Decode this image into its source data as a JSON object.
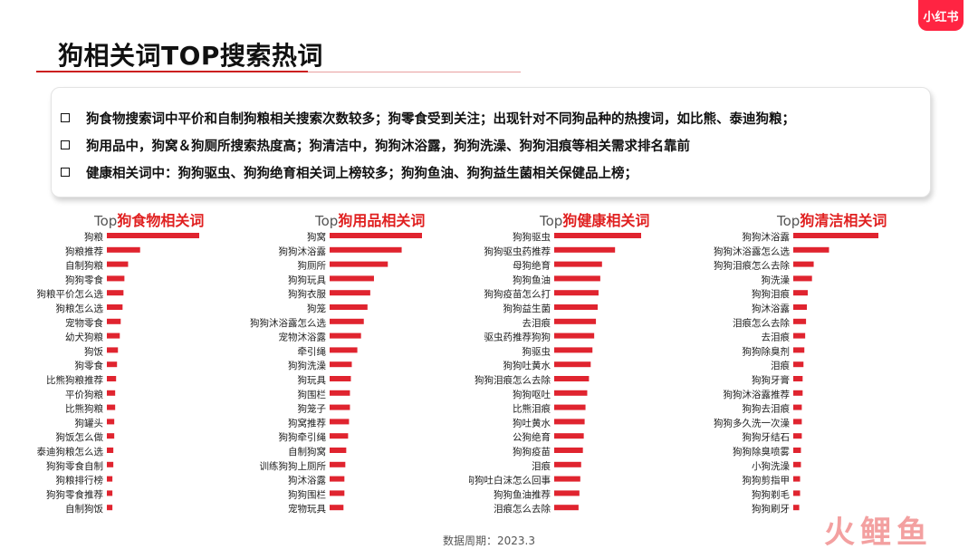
{
  "brand": {
    "badge_text": "小红书",
    "watermark_text": "火鲤鱼"
  },
  "page": {
    "title": "狗相关词TOP搜索热词"
  },
  "summary": [
    "狗食物搜索词中平价和自制狗粮相关搜索次数较多；狗零食受到关注；出现针对不同狗品种的热搜词，如比熊、泰迪狗粮；",
    "狗用品中，狗窝＆狗厕所搜索热度高；狗清洁中，狗狗沐浴露，狗狗洗澡、狗狗泪痕等相关需求排名靠前",
    "健康相关词中：狗狗驱虫、狗狗绝育相关词上榜较多；狗狗鱼油、狗狗益生菌相关保健品上榜；"
  ],
  "footer": {
    "period": "数据周期：2023.3"
  },
  "colors": {
    "bar": "#e0242f",
    "accent": "#e02020"
  },
  "chart_data": [
    {
      "type": "bar",
      "orientation": "horizontal",
      "title_prefix": "Top",
      "title": "狗食物相关词",
      "categories": [
        "狗粮",
        "狗粮推荐",
        "自制狗粮",
        "狗狗零食",
        "狗粮平价怎么选",
        "狗粮怎么选",
        "宠物零食",
        "幼犬狗粮",
        "狗饭",
        "狗零食",
        "比熊狗粮推荐",
        "平价狗粮",
        "比熊狗粮",
        "狗罐头",
        "狗饭怎么做",
        "泰迪狗粮怎么选",
        "狗狗零食自制",
        "狗粮排行榜",
        "狗狗零食推荐",
        "自制狗饭"
      ],
      "values": [
        100,
        36,
        23,
        19,
        18,
        17,
        15,
        14,
        12,
        11,
        10,
        9,
        9,
        8,
        8,
        7,
        7,
        6,
        6,
        6
      ]
    },
    {
      "type": "bar",
      "orientation": "horizontal",
      "title_prefix": "Top",
      "title": "狗用品相关词",
      "categories": [
        "狗窝",
        "狗狗沐浴露",
        "狗厕所",
        "狗狗玩具",
        "狗狗衣服",
        "狗笼",
        "狗狗沐浴露怎么选",
        "宠物沐浴露",
        "牵引绳",
        "狗狗洗澡",
        "狗玩具",
        "狗围栏",
        "狗笼子",
        "狗窝推荐",
        "狗狗牵引绳",
        "自制狗窝",
        "训练狗狗上厕所",
        "狗沐浴露",
        "狗狗围栏",
        "宠物玩具"
      ],
      "values": [
        100,
        78,
        63,
        48,
        44,
        41,
        37,
        34,
        30,
        24,
        23,
        22,
        22,
        21,
        20,
        18,
        17,
        16,
        16,
        15
      ]
    },
    {
      "type": "bar",
      "orientation": "horizontal",
      "title_prefix": "Top",
      "title": "狗健康相关词",
      "categories": [
        "狗狗驱虫",
        "狗狗驱虫药推荐",
        "母狗绝育",
        "狗狗鱼油",
        "狗狗疫苗怎么打",
        "狗狗益生菌",
        "去泪痕",
        "驱虫药推荐狗狗",
        "狗驱虫",
        "狗狗吐黄水",
        "狗狗泪痕怎么去除",
        "狗狗呕吐",
        "比熊泪痕",
        "狗吐黄水",
        "公狗绝育",
        "狗狗疫苗",
        "泪痕",
        "狗狗吐白沫怎么回事",
        "狗狗鱼油推荐",
        "泪痕怎么去除"
      ],
      "values": [
        100,
        70,
        55,
        53,
        51,
        50,
        48,
        46,
        44,
        42,
        40,
        38,
        36,
        35,
        34,
        33,
        31,
        30,
        29,
        28
      ]
    },
    {
      "type": "bar",
      "orientation": "horizontal",
      "title_prefix": "Top",
      "title": "狗清洁相关词",
      "categories": [
        "狗狗沐浴露",
        "狗狗沐浴露怎么选",
        "狗狗泪痕怎么去除",
        "狗洗澡",
        "狗狗泪痕",
        "狗沐浴露",
        "泪痕怎么去除",
        "去泪痕",
        "狗狗除臭剂",
        "泪痕",
        "狗狗牙膏",
        "狗狗沐浴露推荐",
        "狗狗去泪痕",
        "狗狗多久洗一次澡",
        "狗狗牙结石",
        "狗狗除臭喷雾",
        "小狗洗澡",
        "狗狗剪指甲",
        "狗狗剃毛",
        "狗狗刷牙"
      ],
      "values": [
        100,
        42,
        24,
        22,
        17,
        16,
        15,
        14,
        13,
        12,
        11,
        11,
        10,
        10,
        10,
        9,
        9,
        8,
        8,
        7
      ]
    }
  ]
}
